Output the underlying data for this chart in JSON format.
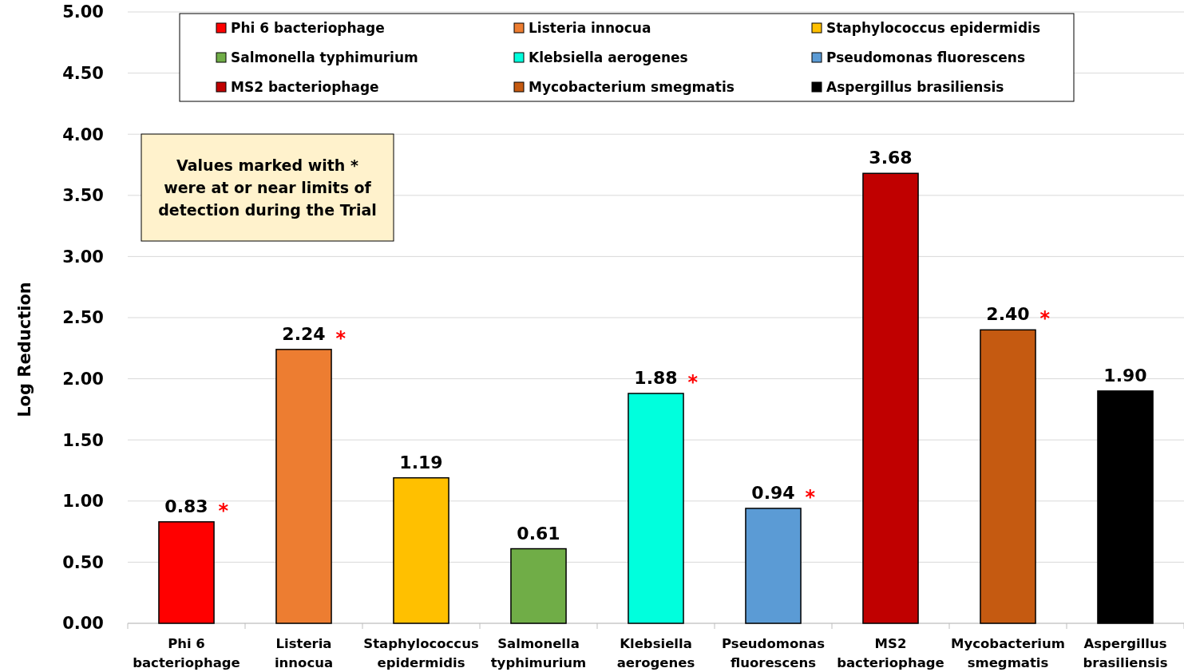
{
  "chart_data": {
    "type": "bar",
    "ylabel": "Log Reduction",
    "categories": [
      "Phi 6 bacteriophage",
      "Listeria innocua",
      "Staphylococcus epidermidis",
      "Salmonella typhimurium",
      "Klebsiella aerogenes",
      "Pseudomonas fluorescens",
      "MS2 bacteriophage",
      "Mycobacterium smegmatis",
      "Aspergillus brasiliensis"
    ],
    "series": [
      {
        "name": "Phi 6 bacteriophage",
        "color": "#ff0000",
        "values": [
          0.83,
          null,
          null,
          null,
          null,
          null,
          null,
          null,
          null
        ],
        "value_labels": [
          "0.83",
          null,
          null,
          null,
          null,
          null,
          null,
          null,
          null
        ]
      },
      {
        "name": "Listeria innocua",
        "color": "#ed7d31",
        "values": [
          null,
          2.24,
          null,
          null,
          null,
          null,
          null,
          null,
          null
        ],
        "value_labels": [
          null,
          "2.24",
          null,
          null,
          null,
          null,
          null,
          null,
          null
        ]
      },
      {
        "name": "Staphylococcus epidermidis",
        "color": "#ffc000",
        "values": [
          null,
          null,
          1.19,
          null,
          null,
          null,
          null,
          null,
          null
        ],
        "value_labels": [
          null,
          null,
          "1.19",
          null,
          null,
          null,
          null,
          null,
          null
        ]
      },
      {
        "name": "Salmonella typhimurium",
        "color": "#70ad47",
        "values": [
          null,
          null,
          null,
          0.61,
          null,
          null,
          null,
          null,
          null
        ],
        "value_labels": [
          null,
          null,
          null,
          "0.61",
          null,
          null,
          null,
          null,
          null
        ]
      },
      {
        "name": "Klebsiella aerogenes",
        "color": "#00ffdd",
        "values": [
          null,
          null,
          null,
          null,
          1.88,
          null,
          null,
          null,
          null
        ],
        "value_labels": [
          null,
          null,
          null,
          null,
          "1.88",
          null,
          null,
          null,
          null
        ]
      },
      {
        "name": "Pseudomonas fluorescens",
        "color": "#5b9bd5",
        "values": [
          null,
          null,
          null,
          null,
          null,
          0.94,
          null,
          null,
          null
        ],
        "value_labels": [
          null,
          null,
          null,
          null,
          null,
          "0.94",
          null,
          null,
          null
        ]
      },
      {
        "name": "MS2 bacteriophage",
        "color": "#c00000",
        "values": [
          null,
          null,
          null,
          null,
          null,
          null,
          3.68,
          null,
          null
        ],
        "value_labels": [
          null,
          null,
          null,
          null,
          null,
          null,
          "3.68",
          null,
          null
        ]
      },
      {
        "name": "Mycobacterium smegmatis",
        "color": "#c55a11",
        "values": [
          null,
          null,
          null,
          null,
          null,
          null,
          null,
          2.4,
          null
        ],
        "value_labels": [
          null,
          null,
          null,
          null,
          null,
          null,
          null,
          "2.40",
          null
        ]
      },
      {
        "name": "Aspergillus brasiliensis",
        "color": "#000000",
        "values": [
          null,
          null,
          null,
          null,
          null,
          null,
          null,
          null,
          1.9
        ],
        "value_labels": [
          null,
          null,
          null,
          null,
          null,
          null,
          null,
          null,
          "1.90"
        ]
      }
    ],
    "ylim": [
      0,
      5
    ],
    "yticks": [
      {
        "value": 0,
        "label": "0.00"
      },
      {
        "value": 0.5,
        "label": "0.50"
      },
      {
        "value": 1,
        "label": "1.00"
      },
      {
        "value": 1.5,
        "label": "1.50"
      },
      {
        "value": 2,
        "label": "2.00"
      },
      {
        "value": 2.5,
        "label": "2.50"
      },
      {
        "value": 3,
        "label": "3.00"
      },
      {
        "value": 3.5,
        "label": "3.50"
      },
      {
        "value": 4,
        "label": "4.00"
      },
      {
        "value": 4.5,
        "label": "4.50"
      },
      {
        "value": 5,
        "label": "5.00"
      }
    ],
    "grid": "y",
    "legend": "top",
    "annotations": [
      "Values marked with * were at or near limits of detection during the Trial",
      {
        "text": "*",
        "x": "Phi 6 bacteriophage",
        "y": 0.83
      },
      {
        "text": "*",
        "x": "Listeria innocua",
        "y": 2.24
      },
      {
        "text": "*",
        "x": "Klebsiella aerogenes",
        "y": 1.88
      },
      {
        "text": "*",
        "x": "Pseudomonas fluorescens",
        "y": 0.94
      },
      {
        "text": "*",
        "x": "Mycobacterium smegmatis",
        "y": 2.4
      }
    ]
  }
}
